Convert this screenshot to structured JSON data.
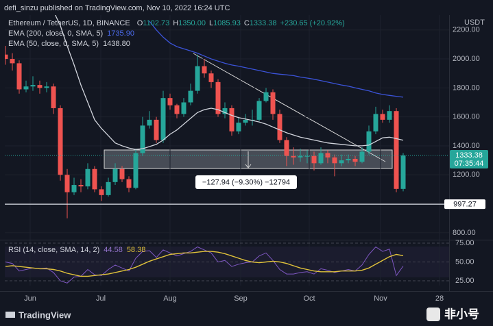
{
  "header": "defi_sinzu published on TradingView.com, Nov 10, 2022 16:24 UTC",
  "chart_data": [
    {
      "type": "candlestick",
      "title": "Ethereum / TetherUS, 1D, BINANCE",
      "ohlc_legend": [
        {
          "key": "O",
          "value": "1102.73"
        },
        {
          "key": "H",
          "value": "1350.00"
        },
        {
          "key": "L",
          "value": "1085.93"
        },
        {
          "key": "C",
          "value": "1333.38"
        }
      ],
      "change": "+230.65 (+20.92%)",
      "currency": "USDT",
      "countdown": "07:35:44",
      "horizontal_line": 997.27,
      "measure_label": "−127.94 (−9.30%) −12794",
      "up_color": "#26a69a",
      "down_color": "#ef5350",
      "open": [
        2030,
        2000,
        1970,
        1790,
        1810,
        1820,
        1800,
        1810,
        1660,
        1200,
        1080,
        1130,
        1120,
        1240,
        1100,
        1060,
        1150,
        1240,
        1170,
        1110,
        1350,
        1540,
        1580,
        1440,
        1730,
        1680,
        1620,
        1700,
        1780,
        1950,
        1900,
        1840,
        1620,
        1660,
        1500,
        1560,
        1580,
        1580,
        1710,
        1770,
        1620,
        1440,
        1330,
        1320,
        1330,
        1330,
        1280,
        1350,
        1320,
        1280,
        1300,
        1310,
        1290,
        1360,
        1500,
        1620,
        1580,
        1640,
        1102.73
      ],
      "high": [
        2090,
        2040,
        1990,
        1850,
        1880,
        1850,
        1840,
        1830,
        1680,
        1240,
        1180,
        1170,
        1280,
        1260,
        1120,
        1180,
        1280,
        1260,
        1190,
        1380,
        1600,
        1640,
        1600,
        1780,
        1760,
        1690,
        1730,
        1830,
        2030,
        2000,
        1920,
        1860,
        1700,
        1680,
        1600,
        1620,
        1650,
        1730,
        1800,
        1790,
        1650,
        1460,
        1390,
        1380,
        1370,
        1360,
        1390,
        1370,
        1340,
        1340,
        1340,
        1330,
        1390,
        1540,
        1670,
        1650,
        1680,
        1660,
        1350
      ],
      "low": [
        1960,
        1920,
        1760,
        1770,
        1780,
        1760,
        1770,
        1620,
        1160,
        900,
        1060,
        1080,
        1100,
        1080,
        1020,
        1050,
        1130,
        1150,
        1080,
        1100,
        1330,
        1520,
        1420,
        1420,
        1650,
        1590,
        1600,
        1680,
        1760,
        1870,
        1800,
        1600,
        1590,
        1470,
        1480,
        1540,
        1540,
        1570,
        1700,
        1580,
        1420,
        1260,
        1270,
        1290,
        1280,
        1230,
        1270,
        1280,
        1190,
        1260,
        1280,
        1260,
        1280,
        1340,
        1480,
        1560,
        1560,
        1080,
        1085.93
      ],
      "close": [
        2000,
        1970,
        1790,
        1810,
        1820,
        1800,
        1810,
        1660,
        1200,
        1080,
        1130,
        1120,
        1240,
        1100,
        1060,
        1150,
        1240,
        1170,
        1110,
        1350,
        1540,
        1580,
        1440,
        1730,
        1680,
        1620,
        1700,
        1780,
        1950,
        1900,
        1840,
        1620,
        1660,
        1500,
        1560,
        1580,
        1580,
        1710,
        1770,
        1620,
        1440,
        1330,
        1320,
        1330,
        1330,
        1280,
        1350,
        1320,
        1280,
        1300,
        1310,
        1290,
        1360,
        1500,
        1620,
        1580,
        1640,
        1102.73,
        1333.38
      ],
      "series": [
        {
          "name": "EMA (200, close, 0, SMA, 5)",
          "last_value_label": "1735.90",
          "color": "#3b53d8",
          "values": [
            null,
            null,
            null,
            null,
            null,
            null,
            null,
            null,
            null,
            null,
            null,
            null,
            null,
            null,
            null,
            null,
            null,
            null,
            null,
            null,
            null,
            2260,
            2200,
            2150,
            2110,
            2085,
            2070,
            2055,
            2040,
            2020,
            2000,
            1985,
            1970,
            1958,
            1950,
            1940,
            1930,
            1920,
            1910,
            1900,
            1895,
            1890,
            1885,
            1875,
            1868,
            1860,
            1850,
            1840,
            1830,
            1820,
            1812,
            1800,
            1790,
            1780,
            1765,
            1755,
            1748,
            1742,
            1735.9
          ]
        },
        {
          "name": "EMA (50, close, 0, SMA, 5)",
          "last_value_label": "1438.80",
          "color": "#d1d4dc",
          "values": [
            null,
            null,
            null,
            null,
            null,
            null,
            null,
            2330,
            2230,
            2090,
            1960,
            1820,
            1700,
            1580,
            1520,
            1470,
            1420,
            1400,
            1385,
            1375,
            1380,
            1395,
            1410,
            1440,
            1480,
            1510,
            1550,
            1590,
            1630,
            1650,
            1660,
            1650,
            1630,
            1610,
            1595,
            1585,
            1575,
            1565,
            1550,
            1530,
            1510,
            1490,
            1475,
            1460,
            1450,
            1440,
            1430,
            1420,
            1415,
            1410,
            1405,
            1400,
            1400,
            1405,
            1430,
            1455,
            1460,
            1450,
            1438.8
          ]
        }
      ],
      "xlim": [
        -0.1,
        64.7
      ],
      "xticks": [
        {
          "value": 3.6,
          "label": "Jun"
        },
        {
          "value": 13.9,
          "label": "Jul"
        },
        {
          "value": 24,
          "label": "Aug"
        },
        {
          "value": 34.3,
          "label": "Sep"
        },
        {
          "value": 44.3,
          "label": "Oct"
        },
        {
          "value": 54.7,
          "label": "Nov"
        },
        {
          "value": 63.3,
          "label": "28"
        }
      ],
      "ylim": [
        752,
        2265
      ],
      "yticks": [
        {
          "value": 800,
          "label": "800.00"
        },
        {
          "value": 1200,
          "label": "1200.00"
        },
        {
          "value": 1400,
          "label": "1400.00"
        },
        {
          "value": 1600,
          "label": "1600.00"
        },
        {
          "value": 1800,
          "label": "1800.00"
        },
        {
          "value": 2000,
          "label": "2000.00"
        },
        {
          "value": 2200,
          "label": "2200.00"
        }
      ]
    },
    {
      "type": "line",
      "title": "RSI (14, close, SMA, 14, 2)",
      "series": [
        {
          "last_value_label": "44.58",
          "color": "#7e57c2",
          "values": [
            50,
            48,
            38,
            40,
            42,
            41,
            42,
            36,
            25,
            22,
            30,
            31,
            40,
            33,
            32,
            40,
            46,
            42,
            38,
            55,
            64,
            65,
            56,
            66,
            62,
            58,
            61,
            64,
            70,
            66,
            62,
            50,
            52,
            44,
            47,
            49,
            50,
            58,
            62,
            52,
            40,
            34,
            34,
            36,
            37,
            34,
            41,
            39,
            36,
            38,
            40,
            38,
            46,
            60,
            70,
            64,
            67,
            32,
            44.58
          ]
        },
        {
          "last_value_label": "58.38",
          "color": "#e0c23a",
          "values": [
            44,
            45,
            44,
            43,
            42,
            41,
            41,
            40,
            38,
            35,
            33,
            31,
            31,
            32,
            33,
            34,
            36,
            38,
            40,
            43,
            47,
            51,
            54,
            57,
            60,
            61,
            62,
            62,
            63,
            64,
            64,
            63,
            61,
            58,
            55,
            52,
            50,
            49,
            50,
            51,
            50,
            48,
            45,
            42,
            40,
            38,
            37,
            37,
            37,
            38,
            38,
            38,
            39,
            42,
            47,
            52,
            57,
            60,
            58.38
          ]
        }
      ],
      "xlim": [
        -0.1,
        64.7
      ],
      "ylim": [
        20.5,
        79.5
      ],
      "yticks": [
        {
          "value": 25,
          "label": "25.00"
        },
        {
          "value": 50,
          "label": "50.00"
        },
        {
          "value": 75,
          "label": "75.00"
        }
      ]
    }
  ],
  "footer": {
    "brand": "TradingView",
    "watermark": "非小号"
  }
}
